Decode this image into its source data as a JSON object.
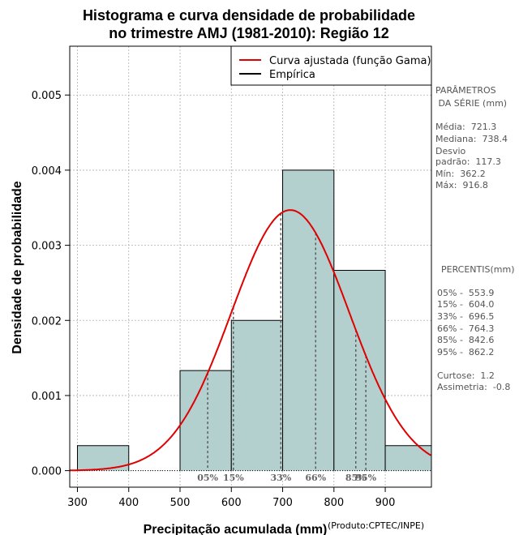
{
  "chart_data": {
    "type": "histogram",
    "title_lines": [
      "Histograma e curva densidade de probabilidade",
      "no trimestre AMJ (1981-2010): Região 12"
    ],
    "xlabel": "Precipitação acumulada (mm)",
    "ylabel": "Densidade de probabilidade",
    "credit": "(Produto:CPTEC/INPE)",
    "xlim": [
      285,
      990
    ],
    "ylim": [
      -0.00022,
      0.00565
    ],
    "x_ticks": [
      300,
      400,
      500,
      600,
      700,
      800,
      900
    ],
    "y_ticks": [
      0.0,
      0.001,
      0.002,
      0.003,
      0.004,
      0.005
    ],
    "y_tick_labels": [
      "0.000",
      "0.001",
      "0.002",
      "0.003",
      "0.004",
      "0.005"
    ],
    "grid": true,
    "bins": [
      {
        "start": 300,
        "end": 400,
        "density": 0.000333
      },
      {
        "start": 400,
        "end": 500,
        "density": 0.0
      },
      {
        "start": 500,
        "end": 600,
        "density": 0.001333
      },
      {
        "start": 600,
        "end": 700,
        "density": 0.002
      },
      {
        "start": 700,
        "end": 800,
        "density": 0.004
      },
      {
        "start": 800,
        "end": 900,
        "density": 0.002667
      },
      {
        "start": 900,
        "end": 1000,
        "density": 0.000333
      }
    ],
    "bar_color": "#b3cfce",
    "curve": {
      "name": "Curva ajustada (função Gama)",
      "distribution": "gamma",
      "mean": 715.0,
      "sd": 115.0,
      "color": "#e00000"
    },
    "legend": [
      {
        "label": "Curva ajustada (função Gama)",
        "color": "#e00000"
      },
      {
        "label": "Empírica",
        "color": "#000000"
      }
    ],
    "legend_position": "top-right",
    "percentiles": [
      {
        "label": "05%",
        "value": 553.9
      },
      {
        "label": "15%",
        "value": 604.0
      },
      {
        "label": "33%",
        "value": 696.5
      },
      {
        "label": "66%",
        "value": 764.3
      },
      {
        "label": "85%",
        "value": 842.6
      },
      {
        "label": "95%",
        "value": 862.2
      }
    ]
  },
  "side_panel": {
    "params_lines": [
      "PARÂMETROS",
      " DA SÉRIE (mm)"
    ],
    "stats_lines": [
      "Média:  721.3",
      "Mediana:  738.4",
      "Desvio",
      "padrão:  117.3",
      "Mín:  362.2",
      "Máx:  916.8"
    ],
    "percentis_title": "PERCENTIS(mm)",
    "percentis_lines": [
      "05% -  553.9",
      "15% -  604.0",
      "33% -  696.5",
      "66% -  764.3",
      "85% -  842.6",
      "95% -  862.2"
    ],
    "shape_lines": [
      "Curtose:  1.2",
      "Assimetria:  -0.8"
    ]
  }
}
